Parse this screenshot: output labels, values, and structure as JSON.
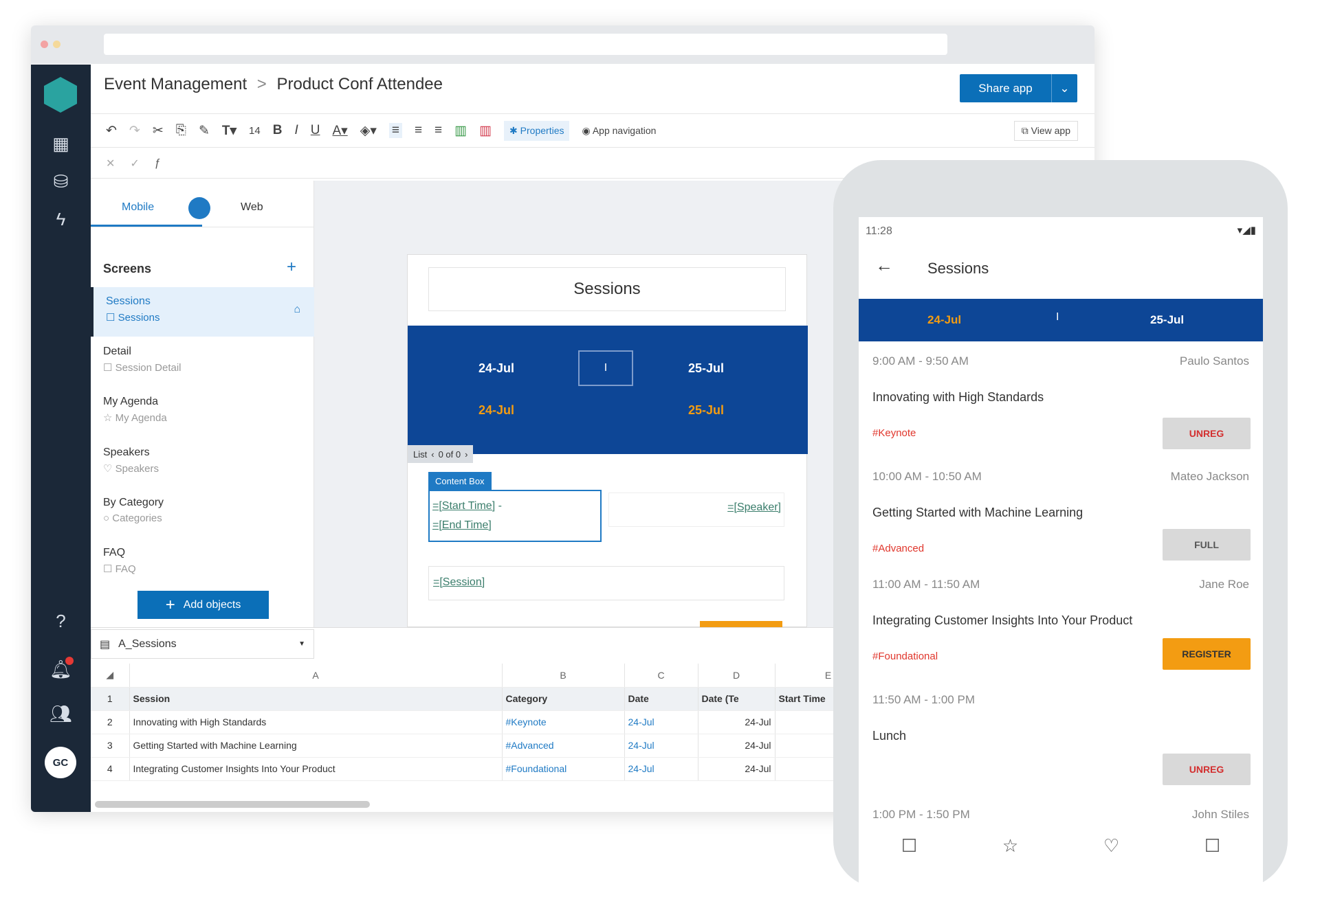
{
  "header": {
    "breadcrumb_parent": "Event Management",
    "breadcrumb_sep": ">",
    "breadcrumb_current": "Product Conf Attendee",
    "share_label": "Share app",
    "share_dropdown": "⌄"
  },
  "toolbar": {
    "font_size": "14",
    "properties_label": "Properties",
    "app_navigation_label": "App navigation",
    "view_app_label": "View app"
  },
  "left_panel": {
    "tab_mobile": "Mobile",
    "tab_web": "Web",
    "screens_title": "Screens",
    "add_symbol": "+",
    "screens": [
      {
        "title": "Sessions",
        "sub": "Sessions"
      },
      {
        "title": "Detail",
        "sub": "Session Detail"
      },
      {
        "title": "My Agenda",
        "sub": "My Agenda"
      },
      {
        "title": "Speakers",
        "sub": "Speakers"
      },
      {
        "title": "By Category",
        "sub": "Categories"
      },
      {
        "title": "FAQ",
        "sub": "FAQ"
      }
    ],
    "add_objects_label": "Add objects"
  },
  "preview": {
    "title": "Sessions",
    "date1": "24-Jul",
    "date2": "25-Jul",
    "sep": "I",
    "list_label": "List",
    "list_pager": "0 of 0",
    "content_box": "Content Box",
    "start_time": "=[Start Time]",
    "dash": "-",
    "end_time": "=[End Time]",
    "speaker": "=[Speaker]",
    "session": "=[Session]"
  },
  "sheet": {
    "selector": "A_Sessions",
    "cols": [
      "A",
      "B",
      "C",
      "D",
      "E"
    ],
    "headers": [
      "Session",
      "Category",
      "Date",
      "Date (Te",
      "Start Time"
    ],
    "rows": [
      [
        "Innovating with High Standards",
        "#Keynote",
        "24-Jul",
        "24-Jul"
      ],
      [
        "Getting Started with Machine Learning",
        "#Advanced",
        "24-Jul",
        "24-Jul"
      ],
      [
        "Integrating Customer Insights Into Your Product",
        "#Foundational",
        "24-Jul",
        "24-Jul"
      ]
    ]
  },
  "phone": {
    "clock": "11:28",
    "title": "Sessions",
    "tab1": "24-Jul",
    "tab2": "25-Jul",
    "tab_sep": "I",
    "sessions": [
      {
        "time": "9:00 AM - 9:50 AM",
        "speaker": "Paulo Santos",
        "title": "Innovating with High Standards",
        "tag": "#Keynote",
        "button": "UNREG"
      },
      {
        "time": "10:00 AM - 10:50 AM",
        "speaker": "Mateo Jackson",
        "title": "Getting Started with Machine Learning",
        "tag": "#Advanced",
        "button": "FULL"
      },
      {
        "time": "11:00 AM - 11:50 AM",
        "speaker": "Jane Roe",
        "title": "Integrating Customer Insights Into Your Product",
        "tag": "#Foundational",
        "button": "REGISTER"
      },
      {
        "time": "11:50 AM - 1:00 PM",
        "speaker": "",
        "title": "Lunch",
        "tag": "",
        "button": "UNREG"
      },
      {
        "time": "1:00 PM - 1:50 PM",
        "speaker": "John Stiles"
      }
    ]
  },
  "user_initials": "GC",
  "colors": {
    "brand_blue": "#0b6fb8",
    "navy": "#0d4696",
    "orange": "#f39c12",
    "sidebar": "#1b2838",
    "tag_red": "#e0362c"
  }
}
